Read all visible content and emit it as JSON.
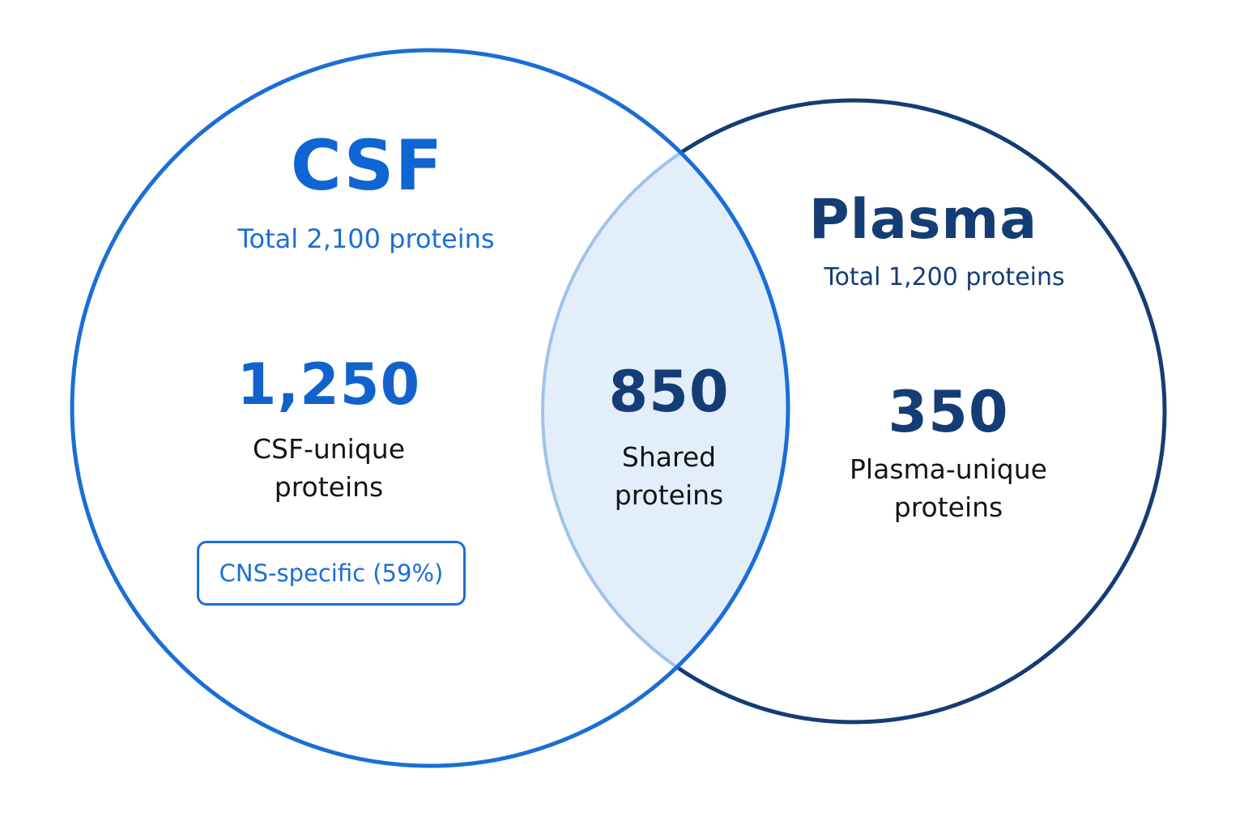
{
  "sets": {
    "csf": {
      "title": "CSF",
      "total": "Total 2,100 proteins",
      "unique_count": "1,250",
      "unique_label_line1": "CSF-unique",
      "unique_label_line2": "proteins",
      "badge": "CNS-specific (59%)"
    },
    "plasma": {
      "title": "Plasma",
      "total": "Total 1,200 proteins",
      "unique_count": "350",
      "unique_label_line1": "Plasma-unique",
      "unique_label_line2": "proteins"
    },
    "shared": {
      "count": "850",
      "label_line1": "Shared",
      "label_line2": "proteins"
    }
  },
  "colors": {
    "csf_stroke": "#1a6fd6",
    "plasma_stroke": "#143d75",
    "overlap_fill": "#e3eefb",
    "overlap_stroke": "#9fc3ea"
  }
}
